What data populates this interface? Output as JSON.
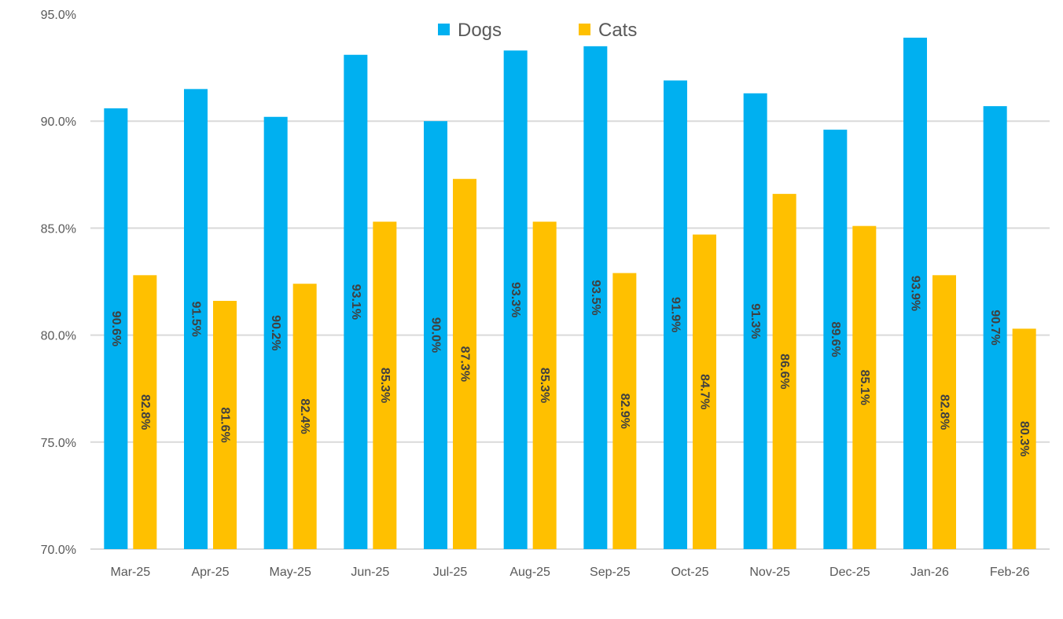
{
  "chart_data": {
    "type": "bar",
    "title": "",
    "xlabel": "",
    "ylabel": "",
    "categories": [
      "Mar-25",
      "Apr-25",
      "May-25",
      "Jun-25",
      "Jul-25",
      "Aug-25",
      "Sep-25",
      "Oct-25",
      "Nov-25",
      "Dec-25",
      "Jan-26",
      "Feb-26"
    ],
    "series": [
      {
        "name": "Dogs",
        "color": "#00B0F0",
        "values": [
          90.6,
          91.5,
          90.2,
          93.1,
          90.0,
          93.3,
          93.5,
          91.9,
          91.3,
          89.6,
          93.9,
          90.7
        ],
        "labels": [
          "90.6%",
          "91.5%",
          "90.2%",
          "93.1%",
          "90.0%",
          "93.3%",
          "93.5%",
          "91.9%",
          "91.3%",
          "89.6%",
          "93.9%",
          "90.7%"
        ]
      },
      {
        "name": "Cats",
        "color": "#FFC000",
        "values": [
          82.8,
          81.6,
          82.4,
          85.3,
          87.3,
          85.3,
          82.9,
          84.7,
          86.6,
          85.1,
          82.8,
          80.3
        ],
        "labels": [
          "82.8%",
          "81.6%",
          "82.4%",
          "85.3%",
          "87.3%",
          "85.3%",
          "82.9%",
          "84.7%",
          "86.6%",
          "85.1%",
          "82.8%",
          "80.3%"
        ]
      }
    ],
    "ylim": [
      70,
      95
    ],
    "yticks": [
      70,
      75,
      80,
      85,
      90,
      95
    ],
    "ytick_labels": [
      "70.0%",
      "75.0%",
      "80.0%",
      "85.0%",
      "90.0%",
      "95.0%"
    ],
    "grid": true,
    "legend_position": "top-center",
    "data_labels": "rotated-vertical-in-bar-center"
  }
}
